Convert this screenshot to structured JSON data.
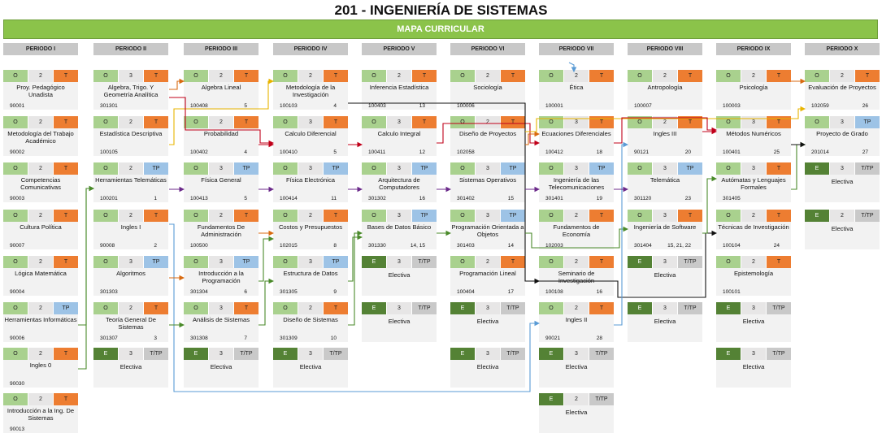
{
  "title": "201 - INGENIERÍA DE SISTEMAS",
  "banner": "MAPA CURRICULAR",
  "periods": [
    {
      "header": "PERIODO I",
      "cards": [
        {
          "slot": 0,
          "type": "O",
          "num": "2",
          "kind": "T",
          "name": "Proy. Pedagógico Unadista",
          "code": "90001",
          "credits": ""
        },
        {
          "slot": 1,
          "type": "O",
          "num": "2",
          "kind": "T",
          "name": "Metodología del Trabajo Académico",
          "code": "90002",
          "credits": ""
        },
        {
          "slot": 2,
          "type": "O",
          "num": "2",
          "kind": "T",
          "name": "Competencias Comunicativas",
          "code": "90003",
          "credits": ""
        },
        {
          "slot": 3,
          "type": "O",
          "num": "2",
          "kind": "T",
          "name": "Cultura Política",
          "code": "90007",
          "credits": ""
        },
        {
          "slot": 4,
          "type": "O",
          "num": "2",
          "kind": "T",
          "name": "Lógica Matemática",
          "code": "90004",
          "credits": ""
        },
        {
          "slot": 5,
          "type": "O",
          "num": "2",
          "kind": "TP",
          "name": "Herramientas Informáticas",
          "code": "90006",
          "credits": ""
        },
        {
          "slot": 6,
          "type": "O",
          "num": "2",
          "kind": "T",
          "name": "Ingles 0",
          "code": "90030",
          "credits": ""
        },
        {
          "slot": 7,
          "type": "O",
          "num": "2",
          "kind": "T",
          "name": "Introducción a la Ing. De Sistemas",
          "code": "90013",
          "credits": ""
        }
      ]
    },
    {
      "header": "PERIODO II",
      "cards": [
        {
          "slot": 0,
          "type": "O",
          "num": "3",
          "kind": "T",
          "name": "Algebra, Trigo. Y Geometría Analítica",
          "code": "301301",
          "credits": ""
        },
        {
          "slot": 1,
          "type": "O",
          "num": "2",
          "kind": "T",
          "name": "Estadística Descriptiva",
          "code": "100105",
          "credits": ""
        },
        {
          "slot": 2,
          "type": "O",
          "num": "2",
          "kind": "TP",
          "name": "Herramientas Telemáticas",
          "code": "100201",
          "credits": "1"
        },
        {
          "slot": 3,
          "type": "O",
          "num": "2",
          "kind": "T",
          "name": "Ingles I",
          "code": "90008",
          "credits": "2"
        },
        {
          "slot": 4,
          "type": "O",
          "num": "3",
          "kind": "TP",
          "name": "Algoritmos",
          "code": "301303",
          "credits": ""
        },
        {
          "slot": 5,
          "type": "O",
          "num": "2",
          "kind": "T",
          "name": "Teoría General De Sistemas",
          "code": "301307",
          "credits": "3"
        },
        {
          "slot": 6,
          "type": "E",
          "num": "3",
          "kind": "T/TP",
          "elective": "Electiva"
        }
      ]
    },
    {
      "header": "PERIODO III",
      "cards": [
        {
          "slot": 0,
          "type": "O",
          "num": "2",
          "kind": "T",
          "name": "Algebra Lineal",
          "code": "100408",
          "credits": "5"
        },
        {
          "slot": 1,
          "type": "O",
          "num": "2",
          "kind": "T",
          "name": "Probabilidad",
          "code": "100402",
          "credits": "4"
        },
        {
          "slot": 2,
          "type": "O",
          "num": "3",
          "kind": "TP",
          "name": "Física General",
          "code": "100413",
          "credits": "5"
        },
        {
          "slot": 3,
          "type": "O",
          "num": "2",
          "kind": "T",
          "name": "Fundamentos De Administración",
          "code": "100500",
          "credits": ""
        },
        {
          "slot": 4,
          "type": "O",
          "num": "3",
          "kind": "TP",
          "name": "Introducción a la Programación",
          "code": "301304",
          "credits": "6"
        },
        {
          "slot": 5,
          "type": "O",
          "num": "3",
          "kind": "T",
          "name": "Análisis de Sistemas",
          "code": "301308",
          "credits": "7"
        },
        {
          "slot": 6,
          "type": "E",
          "num": "3",
          "kind": "T/TP",
          "elective": "Electiva"
        }
      ]
    },
    {
      "header": "PERIODO IV",
      "cards": [
        {
          "slot": 0,
          "type": "O",
          "num": "2",
          "kind": "T",
          "name": "Metodología de la Investigación",
          "code": "100103",
          "credits": "4"
        },
        {
          "slot": 1,
          "type": "O",
          "num": "3",
          "kind": "T",
          "name": "Calculo Diferencial",
          "code": "100410",
          "credits": "5"
        },
        {
          "slot": 2,
          "type": "O",
          "num": "3",
          "kind": "TP",
          "name": "Física Electrónica",
          "code": "100414",
          "credits": "11"
        },
        {
          "slot": 3,
          "type": "O",
          "num": "2",
          "kind": "T",
          "name": "Costos y Presupuestos",
          "code": "102015",
          "credits": "8"
        },
        {
          "slot": 4,
          "type": "O",
          "num": "3",
          "kind": "TP",
          "name": "Estructura de Datos",
          "code": "301305",
          "credits": "9"
        },
        {
          "slot": 5,
          "type": "O",
          "num": "2",
          "kind": "T",
          "name": "Diseño de Sistemas",
          "code": "301309",
          "credits": "10"
        },
        {
          "slot": 6,
          "type": "E",
          "num": "3",
          "kind": "T/TP",
          "elective": "Electiva"
        }
      ]
    },
    {
      "header": "PERIODO V",
      "cards": [
        {
          "slot": 0,
          "type": "O",
          "num": "2",
          "kind": "T",
          "name": "Inferencia Estadística",
          "code": "100403",
          "credits": "13"
        },
        {
          "slot": 1,
          "type": "O",
          "num": "3",
          "kind": "T",
          "name": "Calculo Integral",
          "code": "100411",
          "credits": "12"
        },
        {
          "slot": 2,
          "type": "O",
          "num": "3",
          "kind": "TP",
          "name": "Arquitectura de Computadores",
          "code": "301302",
          "credits": "16"
        },
        {
          "slot": 3,
          "type": "O",
          "num": "3",
          "kind": "TP",
          "name": "Bases de Datos Básico",
          "code": "301330",
          "credits": "14, 15"
        },
        {
          "slot": 4,
          "type": "E",
          "num": "3",
          "kind": "T/TP",
          "elective": "Electiva"
        },
        {
          "slot": 5,
          "type": "E",
          "num": "3",
          "kind": "T/TP",
          "elective": "Electiva"
        }
      ]
    },
    {
      "header": "PERIODO VI",
      "cards": [
        {
          "slot": 0,
          "type": "O",
          "num": "2",
          "kind": "T",
          "name": "Sociología",
          "code": "100006",
          "credits": ""
        },
        {
          "slot": 1,
          "type": "O",
          "num": "2",
          "kind": "T",
          "name": "Diseño de Proyectos",
          "code": "102058",
          "credits": ""
        },
        {
          "slot": 2,
          "type": "O",
          "num": "3",
          "kind": "TP",
          "name": "Sistemas Operativos",
          "code": "301402",
          "credits": "15"
        },
        {
          "slot": 3,
          "type": "O",
          "num": "3",
          "kind": "TP",
          "name": "Programación Orientada a Objetos",
          "code": "301403",
          "credits": "14"
        },
        {
          "slot": 4,
          "type": "O",
          "num": "2",
          "kind": "T",
          "name": "Programación Lineal",
          "code": "100404",
          "credits": "17"
        },
        {
          "slot": 5,
          "type": "E",
          "num": "3",
          "kind": "T/TP",
          "elective": "Electiva"
        },
        {
          "slot": 6,
          "type": "E",
          "num": "3",
          "kind": "T/TP",
          "elective": "Electiva"
        }
      ]
    },
    {
      "header": "PERIODO VII",
      "cards": [
        {
          "slot": 0,
          "type": "O",
          "num": "2",
          "kind": "T",
          "name": "Ética",
          "code": "100001",
          "credits": ""
        },
        {
          "slot": 1,
          "type": "O",
          "num": "3",
          "kind": "T",
          "name": "Ecuaciones Diferenciales",
          "code": "100412",
          "credits": "18"
        },
        {
          "slot": 2,
          "type": "O",
          "num": "3",
          "kind": "TP",
          "name": "Ingeniería de las Telecomunicaciones",
          "code": "301401",
          "credits": "19"
        },
        {
          "slot": 3,
          "type": "O",
          "num": "2",
          "kind": "T",
          "name": "Fundamentos de Economía",
          "code": "102003",
          "credits": ""
        },
        {
          "slot": 4,
          "type": "O",
          "num": "2",
          "kind": "T",
          "name": "Seminario de Investigación",
          "code": "100108",
          "credits": "16"
        },
        {
          "slot": 5,
          "type": "O",
          "num": "2",
          "kind": "T",
          "name": "Ingles II",
          "code": "90021",
          "credits": "28"
        },
        {
          "slot": 6,
          "type": "E",
          "num": "3",
          "kind": "T/TP",
          "elective": "Electiva"
        },
        {
          "slot": 7,
          "type": "E",
          "num": "2",
          "kind": "T/TP",
          "elective": "Electiva"
        }
      ]
    },
    {
      "header": "PERIODO VIII",
      "cards": [
        {
          "slot": 0,
          "type": "O",
          "num": "2",
          "kind": "T",
          "name": "Antropología",
          "code": "100007",
          "credits": ""
        },
        {
          "slot": 1,
          "type": "O",
          "num": "2",
          "kind": "T",
          "name": "Ingles III",
          "code": "90121",
          "credits": "20"
        },
        {
          "slot": 2,
          "type": "O",
          "num": "3",
          "kind": "TP",
          "name": "Telemática",
          "code": "301120",
          "credits": "23"
        },
        {
          "slot": 3,
          "type": "O",
          "num": "3",
          "kind": "T",
          "name": "Ingeniería de Software",
          "code": "301404",
          "credits": "15, 21, 22"
        },
        {
          "slot": 4,
          "type": "E",
          "num": "3",
          "kind": "T/TP",
          "elective": "Electiva"
        },
        {
          "slot": 5,
          "type": "E",
          "num": "3",
          "kind": "T/TP",
          "elective": "Electiva"
        }
      ]
    },
    {
      "header": "PERIODO IX",
      "cards": [
        {
          "slot": 0,
          "type": "O",
          "num": "2",
          "kind": "T",
          "name": "Psicología",
          "code": "100003",
          "credits": ""
        },
        {
          "slot": 1,
          "type": "O",
          "num": "3",
          "kind": "T",
          "name": "Métodos Numéricos",
          "code": "100401",
          "credits": "25"
        },
        {
          "slot": 2,
          "type": "O",
          "num": "3",
          "kind": "T",
          "name": "Autómatas y Lenguajes Formales",
          "code": "301405",
          "credits": ""
        },
        {
          "slot": 3,
          "type": "O",
          "num": "2",
          "kind": "T",
          "name": "Técnicas de Investigación",
          "code": "100104",
          "credits": "24"
        },
        {
          "slot": 4,
          "type": "O",
          "num": "2",
          "kind": "T",
          "name": "Epistemología",
          "code": "100101",
          "credits": ""
        },
        {
          "slot": 5,
          "type": "E",
          "num": "3",
          "kind": "T/TP",
          "elective": "Electiva"
        },
        {
          "slot": 6,
          "type": "E",
          "num": "3",
          "kind": "T/TP",
          "elective": "Electiva"
        }
      ]
    },
    {
      "header": "PERIODO X",
      "cards": [
        {
          "slot": 0,
          "type": "O",
          "num": "2",
          "kind": "T",
          "name": "Evaluación de Proyectos",
          "code": "102059",
          "credits": "26"
        },
        {
          "slot": 1,
          "type": "O",
          "num": "3",
          "kind": "TP",
          "name": "Proyecto de Grado",
          "code": "201014",
          "credits": "27"
        },
        {
          "slot": 2,
          "type": "E",
          "num": "3",
          "kind": "T/TP",
          "elective": "Electiva"
        },
        {
          "slot": 3,
          "type": "E",
          "num": "2",
          "kind": "T/TP",
          "elective": "Electiva"
        }
      ]
    }
  ],
  "arrow_colors": {
    "green": "#4a8a2a",
    "red": "#c0001a",
    "purple": "#6b2a8a",
    "orange": "#d86a10",
    "yellow": "#e8b400",
    "blue": "#5a9bd5",
    "black": "#111111"
  }
}
